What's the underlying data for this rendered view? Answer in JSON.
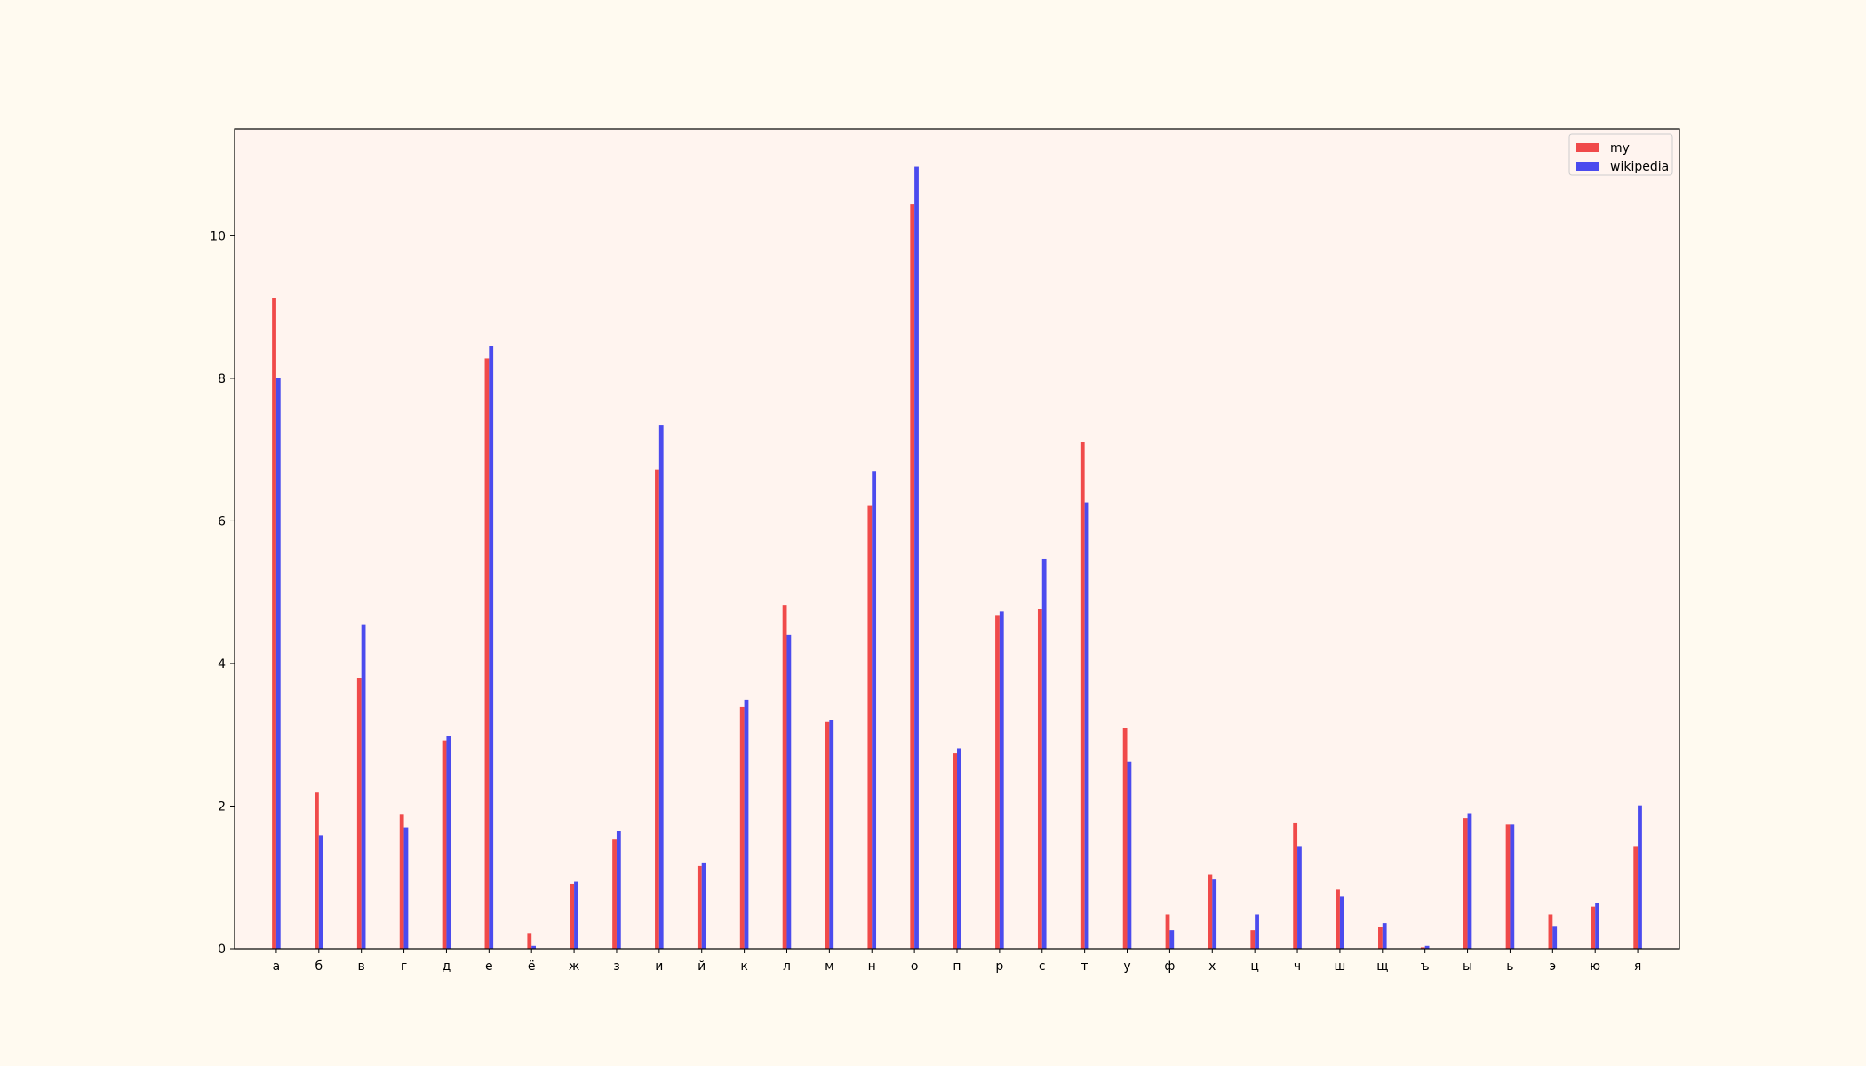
{
  "chart_data": {
    "type": "bar",
    "title": "",
    "xlabel": "",
    "ylabel": "",
    "ylim": [
      0,
      11.5
    ],
    "yticks": [
      0,
      2,
      4,
      6,
      8,
      10
    ],
    "grid": false,
    "legend_position": "top-right",
    "background_color": "#fffaf0",
    "axes_background_color": "#fff4ef",
    "categories": [
      "а",
      "б",
      "в",
      "г",
      "д",
      "е",
      "ё",
      "ж",
      "з",
      "и",
      "й",
      "к",
      "л",
      "м",
      "н",
      "о",
      "п",
      "р",
      "с",
      "т",
      "у",
      "ф",
      "х",
      "ц",
      "ч",
      "ш",
      "щ",
      "ъ",
      "ы",
      "ь",
      "э",
      "ю",
      "я"
    ],
    "series": [
      {
        "name": "my",
        "color": "#f04a4a",
        "values": [
          9.13,
          2.19,
          3.8,
          1.89,
          2.92,
          8.28,
          0.22,
          0.91,
          1.53,
          6.72,
          1.16,
          3.39,
          4.82,
          3.18,
          6.21,
          10.44,
          2.74,
          4.68,
          4.76,
          7.11,
          3.1,
          0.48,
          1.04,
          0.26,
          1.77,
          0.83,
          0.3,
          0.02,
          1.83,
          1.74,
          0.48,
          0.59,
          1.44
        ]
      },
      {
        "name": "wikipedia",
        "color": "#4b4bee",
        "values": [
          8.01,
          1.59,
          4.54,
          1.7,
          2.98,
          8.45,
          0.04,
          0.94,
          1.65,
          7.35,
          1.21,
          3.49,
          4.4,
          3.21,
          6.7,
          10.97,
          2.81,
          4.73,
          5.47,
          6.26,
          2.62,
          0.26,
          0.97,
          0.48,
          1.44,
          0.73,
          0.36,
          0.04,
          1.9,
          1.74,
          0.32,
          0.64,
          2.01
        ]
      }
    ]
  }
}
